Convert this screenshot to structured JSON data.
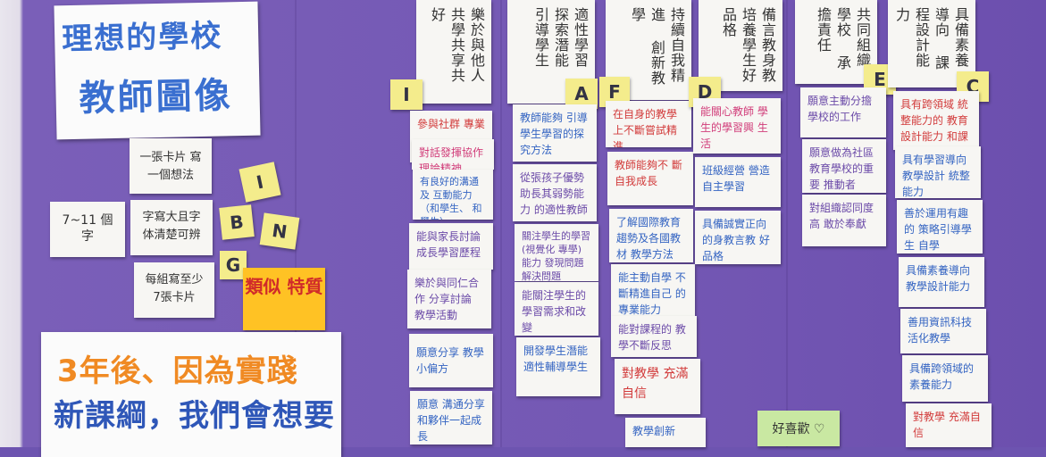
{
  "title": {
    "line1": "理想的學校",
    "line2": "教師圖像"
  },
  "left_cards": [
    {
      "text": "一張卡片 寫一個想法"
    },
    {
      "text": "7~11 個字"
    },
    {
      "text": "字寫大且字 体清楚可辨"
    },
    {
      "text": "每組寫至少 7張卡片"
    }
  ],
  "left_stickies": [
    "I",
    "B",
    "N",
    "G"
  ],
  "orange_note": {
    "text": "類似 特質"
  },
  "bottom_sign": {
    "line1": "3年後、因為實踐",
    "line2": "新課綱，我們會想要"
  },
  "columns": [
    {
      "header": "樂於與他人共學共享共好",
      "sticky": "I",
      "cards": [
        "參與社群 專業",
        "對話發揮協作 理論精神",
        "有良好的溝通及 互動能力（和學生、 和學生）",
        "能與家長討論 成長學習歷程",
        "樂於與同仁合作 分享討論 教學活動",
        "願意分享 教學小偏方",
        "願意 溝通分享 和夥伴一起成長"
      ]
    },
    {
      "header": "適性學習 探索潛能 引導學生",
      "sticky": "A",
      "cards": [
        "教師能夠 引導學生學習的探 究方法",
        "從張孩子優勢 助長其弱勢能力 的適性教師",
        "關注學生的學習 (視覺化 專學)能力 發現問題解決問題",
        "能關注學生的 學習需求和改變",
        "開發學生潛能 適性輔導學生"
      ]
    },
    {
      "header": "持續自我精進 創新教學",
      "sticky": "F",
      "cards": [
        "在自身的教學 上不斷嘗試精進",
        "教師能夠不 斷自我成長",
        "了解國際教育 趨勢及各國教材 教學方法",
        "能主動自學 不斷精進自己 的專業能力",
        "能對課程的 教學不斷反思",
        "對教學 充滿自信",
        "教學創新"
      ]
    },
    {
      "header": "備言教身教 培養學生好品格",
      "sticky": "D",
      "cards": [
        "能關心教師 學生的學習興 生活",
        "班級經營 營造自主學習",
        "具備誠實正向 的身教言教 好品格"
      ]
    },
    {
      "header": "共同組織學校 承擔責任",
      "sticky": "E",
      "cards": [
        "願意主動分擔 學校的工作",
        "願意做為社區 教育學校的重要 推動者",
        "對組織認同度高 敢於奉獻"
      ]
    },
    {
      "header": "具備素養導向 課程設計能力",
      "sticky": "C",
      "cards": [
        "具有跨領域 統整能力的 教育設計能力 和課程",
        "具有學習導向 教學設計 統整能力",
        "善於運用有趣的 策略引導學生 自學",
        "具備素養導向 教學設計能力",
        "善用資訊科技 活化教學",
        "具備跨領域的 素養能力",
        "對教學 充滿自信"
      ]
    }
  ],
  "green_note": {
    "text": "好喜歡 ♡"
  }
}
